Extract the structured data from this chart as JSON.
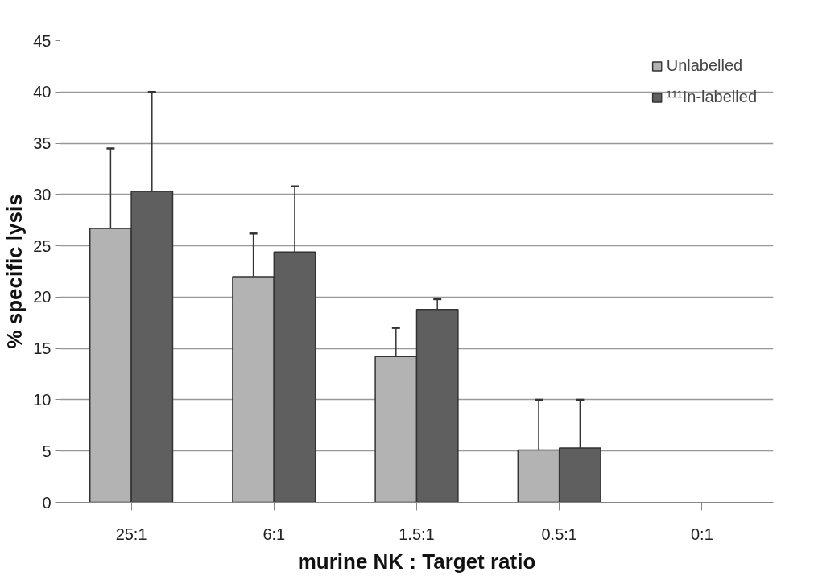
{
  "chart_data": {
    "type": "bar",
    "xlabel": "murine NK : Target ratio",
    "ylabel": "% specific lysis",
    "categories": [
      "25:1",
      "6:1",
      "1.5:1",
      "0.5:1",
      "0:1"
    ],
    "series": [
      {
        "name": "Unlabelled",
        "color": "#b3b3b3",
        "values": [
          26.7,
          22.0,
          14.2,
          5.1,
          null
        ],
        "errors": [
          [
            26.7,
            34.5
          ],
          [
            22.0,
            26.2
          ],
          [
            14.2,
            17.0
          ],
          [
            5.1,
            10.0
          ],
          null
        ]
      },
      {
        "name": "¹¹¹In-labelled",
        "color": "#5f5f5f",
        "values": [
          30.3,
          24.4,
          18.8,
          5.3,
          null
        ],
        "errors": [
          [
            30.3,
            40.0
          ],
          [
            24.4,
            30.8
          ],
          [
            18.8,
            19.8
          ],
          [
            5.3,
            10.0
          ],
          null
        ]
      }
    ],
    "ylim": [
      0,
      45
    ],
    "yticks": [
      0,
      5,
      10,
      15,
      20,
      25,
      30,
      35,
      40,
      45
    ],
    "grid": "y",
    "legend": "top right"
  }
}
